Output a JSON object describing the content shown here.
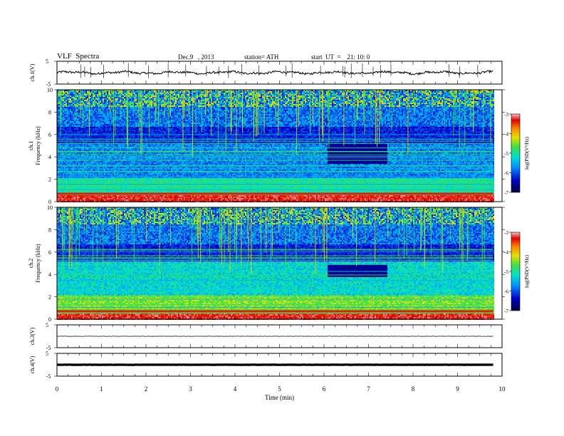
{
  "header": {
    "title": "VLF  Spectra",
    "date": "Dec.9   , 2013",
    "station": "station= ATH",
    "start": "start  UT  =    21: 10: 0"
  },
  "chart_data": [
    {
      "type": "line",
      "panel": "ch1-waveform",
      "ylabel": "ch.1(V)",
      "ylim": [
        -5,
        5
      ],
      "yticks": [
        "5",
        "-5"
      ],
      "xlim": [
        0,
        10
      ],
      "series": [
        {
          "values_note": "",
          "baseline": 0
        }
      ]
    },
    {
      "type": "heatmap",
      "panel": "ch1-spectrogram",
      "ylabel_line1": "ch.1",
      "ylabel_line2": "Frequency  (kHz)",
      "ylim": [
        0,
        10
      ],
      "yticks": [
        "0",
        "2",
        "4",
        "6",
        "8",
        "10"
      ],
      "xlim": [
        0,
        9.8
      ],
      "colorbar": {
        "label": "log(PSD(V²/Hz)",
        "range": [
          -7,
          -3
        ],
        "ticks": [
          "-3",
          "-4",
          "-5",
          "-6",
          "-7"
        ]
      },
      "event_band": {
        "t_start": 6.05,
        "t_end": 7.4,
        "f_low": 3.4,
        "f_high": 5.2
      }
    },
    {
      "type": "heatmap",
      "panel": "ch2-spectrogram",
      "ylabel_line1": "ch.2",
      "ylabel_line2": "Frequency  (kHz)",
      "ylim": [
        0,
        10
      ],
      "yticks": [
        "0",
        "2",
        "4",
        "6",
        "8",
        "10"
      ],
      "xlim": [
        0,
        9.8
      ],
      "colorbar": {
        "label": "log(PSD(V²/Hz)",
        "range": [
          -7,
          -3
        ],
        "ticks": [
          "-3",
          "-4",
          "-5",
          "-6",
          "-7"
        ]
      },
      "event_band": {
        "t_start": 6.05,
        "t_end": 7.4,
        "f_low": 3.8,
        "f_high": 5.0
      }
    },
    {
      "type": "line",
      "panel": "ch3-waveform",
      "ylabel": "ch.3(V)",
      "ylim": [
        -5,
        5
      ],
      "yticks": [
        "5",
        "-5"
      ],
      "series": [
        {
          "baseline": 0
        }
      ]
    },
    {
      "type": "line",
      "panel": "ch4-waveform",
      "ylabel": "ch.4(V)",
      "ylim": [
        -5,
        5
      ],
      "yticks": [
        "5",
        "-5"
      ],
      "series": [
        {
          "baseline": 0
        }
      ]
    }
  ],
  "xaxis": {
    "label": "Time  (min)",
    "ticks": [
      "0",
      "1",
      "2",
      "3",
      "4",
      "5",
      "6",
      "7",
      "8",
      "9",
      "10"
    ],
    "range": [
      0,
      10
    ]
  }
}
